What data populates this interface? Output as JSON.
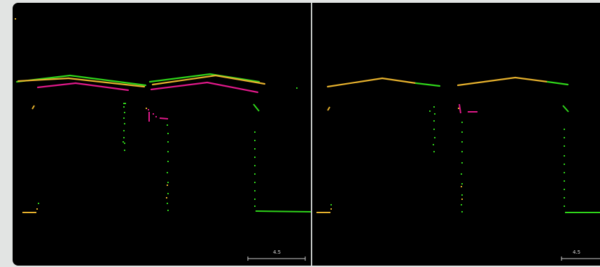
{
  "colors": {
    "green": "#2fd51a",
    "yellow": "#e6b12d",
    "magenta": "#e0198a",
    "background": "#000000",
    "divider": "#bfc3c1"
  },
  "left_view": {
    "scale_label": "4.5"
  },
  "right_view": {
    "scale_label": "4.5"
  }
}
